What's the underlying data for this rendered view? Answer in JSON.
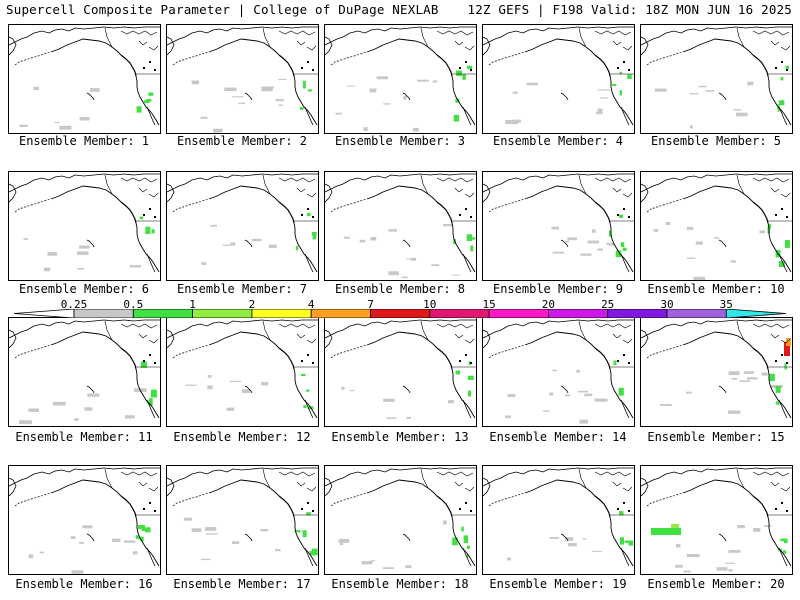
{
  "header": {
    "left": "Supercell Composite Parameter | College of DuPage NEXLAB",
    "right": "12Z GEFS | F198 Valid: 18Z MON JUN 16 2025"
  },
  "members": [
    {
      "label": "Ensemble Member: 1"
    },
    {
      "label": "Ensemble Member: 2"
    },
    {
      "label": "Ensemble Member: 3"
    },
    {
      "label": "Ensemble Member: 4"
    },
    {
      "label": "Ensemble Member: 5"
    },
    {
      "label": "Ensemble Member: 6"
    },
    {
      "label": "Ensemble Member: 7"
    },
    {
      "label": "Ensemble Member: 8"
    },
    {
      "label": "Ensemble Member: 9"
    },
    {
      "label": "Ensemble Member: 10"
    },
    {
      "label": "Ensemble Member: 11"
    },
    {
      "label": "Ensemble Member: 12"
    },
    {
      "label": "Ensemble Member: 13"
    },
    {
      "label": "Ensemble Member: 14"
    },
    {
      "label": "Ensemble Member: 15"
    },
    {
      "label": "Ensemble Member: 16"
    },
    {
      "label": "Ensemble Member: 17"
    },
    {
      "label": "Ensemble Member: 18"
    },
    {
      "label": "Ensemble Member: 19"
    },
    {
      "label": "Ensemble Member: 20"
    }
  ],
  "colorbar": {
    "ticks": [
      "0.25",
      "0.5",
      "1",
      "2",
      "4",
      "7",
      "10",
      "15",
      "20",
      "25",
      "30",
      "35"
    ],
    "colors": [
      "#c8c8c8",
      "#40e040",
      "#90ee40",
      "#ffff20",
      "#ffa020",
      "#e01818",
      "#e01870",
      "#ff18c8",
      "#d018e8",
      "#8018e0",
      "#a060e0"
    ],
    "end_color": "#30e8e8"
  }
}
